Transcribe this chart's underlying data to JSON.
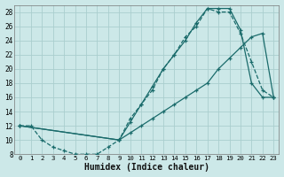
{
  "xlabel": "Humidex (Indice chaleur)",
  "bg_color": "#cce8e8",
  "grid_color": "#aacece",
  "line_color": "#1a6b6b",
  "xlim": [
    -0.5,
    23.5
  ],
  "ylim": [
    8,
    29
  ],
  "xticks": [
    0,
    1,
    2,
    3,
    4,
    5,
    6,
    7,
    8,
    9,
    10,
    11,
    12,
    13,
    14,
    15,
    16,
    17,
    18,
    19,
    20,
    21,
    22,
    23
  ],
  "yticks": [
    8,
    10,
    12,
    14,
    16,
    18,
    20,
    22,
    24,
    26,
    28
  ],
  "line_upper_x": [
    0,
    1,
    2,
    3,
    4,
    5,
    6,
    7,
    8,
    9,
    10,
    11,
    12,
    13,
    14,
    15,
    16,
    17,
    18,
    19,
    20,
    21,
    22,
    23
  ],
  "line_upper_y": [
    12,
    12,
    10,
    9,
    8.5,
    8,
    8,
    8,
    9,
    10,
    13,
    15,
    17,
    20,
    22,
    24.5,
    26,
    28.5,
    28,
    28,
    25,
    21,
    17,
    16
  ],
  "line_peak_x": [
    0,
    9,
    10,
    11,
    12,
    13,
    14,
    15,
    16,
    17,
    18,
    19,
    20,
    21,
    22,
    23
  ],
  "line_peak_y": [
    12,
    10,
    12.5,
    15,
    17.5,
    20,
    22,
    24,
    26.5,
    28.5,
    28.5,
    28.5,
    25.5,
    18,
    16,
    16
  ],
  "line_diag_x": [
    0,
    9,
    10,
    11,
    12,
    13,
    14,
    15,
    16,
    17,
    18,
    19,
    20,
    21,
    22,
    23
  ],
  "line_diag_y": [
    12,
    10,
    11,
    12,
    13,
    14,
    15,
    16,
    17,
    18,
    20,
    21.5,
    23,
    24.5,
    25,
    16
  ]
}
